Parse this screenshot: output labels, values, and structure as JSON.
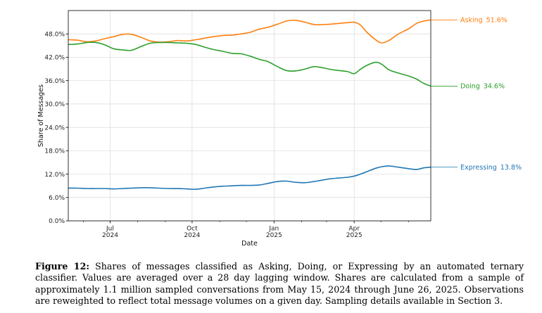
{
  "chart_data": {
    "type": "line",
    "xlabel": "Date",
    "ylabel": "Share of Messages",
    "ylim": [
      0,
      54
    ],
    "yticks": [
      0,
      6,
      12,
      18,
      24,
      30,
      36,
      42,
      48
    ],
    "ytick_labels": [
      "0.0%",
      "6.0%",
      "12.0%",
      "18.0%",
      "24.0%",
      "30.0%",
      "36.0%",
      "42.0%",
      "48.0%"
    ],
    "xlim": [
      "2024-05-15",
      "2025-06-26"
    ],
    "xticks": [
      {
        "date": "2024-07-01",
        "month": "Jul",
        "year": "2024"
      },
      {
        "date": "2024-10-01",
        "month": "Oct",
        "year": "2024"
      },
      {
        "date": "2025-01-01",
        "month": "Jan",
        "year": "2025"
      },
      {
        "date": "2025-04-01",
        "month": "Apr",
        "year": "2025"
      }
    ],
    "grid": true,
    "series": [
      {
        "name": "Asking",
        "end_label": "Asking",
        "end_value": "51.6%",
        "color": "#ff7f0e",
        "points": [
          [
            "2024-05-15",
            46.5
          ],
          [
            "2024-05-25",
            46.4
          ],
          [
            "2024-06-05",
            46.0
          ],
          [
            "2024-06-15",
            46.2
          ],
          [
            "2024-06-25",
            46.8
          ],
          [
            "2024-07-05",
            47.3
          ],
          [
            "2024-07-15",
            47.9
          ],
          [
            "2024-07-25",
            47.9
          ],
          [
            "2024-08-05",
            47.1
          ],
          [
            "2024-08-15",
            46.2
          ],
          [
            "2024-08-25",
            45.9
          ],
          [
            "2024-09-05",
            46.0
          ],
          [
            "2024-09-15",
            46.3
          ],
          [
            "2024-09-25",
            46.2
          ],
          [
            "2024-10-05",
            46.5
          ],
          [
            "2024-10-15",
            46.9
          ],
          [
            "2024-10-25",
            47.3
          ],
          [
            "2024-11-05",
            47.6
          ],
          [
            "2024-11-15",
            47.7
          ],
          [
            "2024-11-25",
            48.0
          ],
          [
            "2024-12-05",
            48.4
          ],
          [
            "2024-12-15",
            49.2
          ],
          [
            "2024-12-25",
            49.7
          ],
          [
            "2025-01-05",
            50.5
          ],
          [
            "2025-01-15",
            51.3
          ],
          [
            "2025-01-25",
            51.5
          ],
          [
            "2025-02-05",
            51.0
          ],
          [
            "2025-02-15",
            50.4
          ],
          [
            "2025-02-25",
            50.4
          ],
          [
            "2025-03-05",
            50.5
          ],
          [
            "2025-03-15",
            50.7
          ],
          [
            "2025-03-25",
            50.9
          ],
          [
            "2025-04-01",
            51.0
          ],
          [
            "2025-04-08",
            50.3
          ],
          [
            "2025-04-15",
            48.5
          ],
          [
            "2025-04-25",
            46.5
          ],
          [
            "2025-05-02",
            45.7
          ],
          [
            "2025-05-10",
            46.3
          ],
          [
            "2025-05-20",
            47.9
          ],
          [
            "2025-06-01",
            49.3
          ],
          [
            "2025-06-10",
            50.7
          ],
          [
            "2025-06-18",
            51.3
          ],
          [
            "2025-06-26",
            51.6
          ]
        ]
      },
      {
        "name": "Doing",
        "end_label": "Doing",
        "end_value": "34.6%",
        "color": "#2ca02c",
        "points": [
          [
            "2024-05-15",
            45.3
          ],
          [
            "2024-05-25",
            45.4
          ],
          [
            "2024-06-05",
            45.8
          ],
          [
            "2024-06-15",
            45.8
          ],
          [
            "2024-06-25",
            45.2
          ],
          [
            "2024-07-05",
            44.2
          ],
          [
            "2024-07-15",
            43.9
          ],
          [
            "2024-07-25",
            43.8
          ],
          [
            "2024-08-05",
            44.8
          ],
          [
            "2024-08-15",
            45.6
          ],
          [
            "2024-08-25",
            45.8
          ],
          [
            "2024-09-05",
            45.8
          ],
          [
            "2024-09-15",
            45.7
          ],
          [
            "2024-09-25",
            45.6
          ],
          [
            "2024-10-05",
            45.3
          ],
          [
            "2024-10-15",
            44.6
          ],
          [
            "2024-10-25",
            44.0
          ],
          [
            "2024-11-05",
            43.5
          ],
          [
            "2024-11-15",
            43.0
          ],
          [
            "2024-11-25",
            42.9
          ],
          [
            "2024-12-05",
            42.3
          ],
          [
            "2024-12-15",
            41.5
          ],
          [
            "2024-12-25",
            40.9
          ],
          [
            "2025-01-05",
            39.6
          ],
          [
            "2025-01-15",
            38.6
          ],
          [
            "2025-01-25",
            38.5
          ],
          [
            "2025-02-05",
            39.0
          ],
          [
            "2025-02-15",
            39.6
          ],
          [
            "2025-02-25",
            39.3
          ],
          [
            "2025-03-05",
            38.9
          ],
          [
            "2025-03-15",
            38.6
          ],
          [
            "2025-03-25",
            38.3
          ],
          [
            "2025-04-01",
            37.8
          ],
          [
            "2025-04-08",
            38.9
          ],
          [
            "2025-04-15",
            39.9
          ],
          [
            "2025-04-25",
            40.7
          ],
          [
            "2025-05-02",
            40.2
          ],
          [
            "2025-05-10",
            38.8
          ],
          [
            "2025-05-20",
            38.0
          ],
          [
            "2025-06-01",
            37.2
          ],
          [
            "2025-06-10",
            36.4
          ],
          [
            "2025-06-18",
            35.3
          ],
          [
            "2025-06-26",
            34.6
          ]
        ]
      },
      {
        "name": "Expressing",
        "end_label": "Expressing",
        "end_value": "13.8%",
        "color": "#1f77b4",
        "points": [
          [
            "2024-05-15",
            8.4
          ],
          [
            "2024-05-25",
            8.4
          ],
          [
            "2024-06-05",
            8.3
          ],
          [
            "2024-06-15",
            8.3
          ],
          [
            "2024-06-25",
            8.3
          ],
          [
            "2024-07-05",
            8.2
          ],
          [
            "2024-07-15",
            8.3
          ],
          [
            "2024-07-25",
            8.4
          ],
          [
            "2024-08-05",
            8.5
          ],
          [
            "2024-08-15",
            8.5
          ],
          [
            "2024-08-25",
            8.4
          ],
          [
            "2024-09-05",
            8.3
          ],
          [
            "2024-09-15",
            8.3
          ],
          [
            "2024-09-25",
            8.2
          ],
          [
            "2024-10-05",
            8.1
          ],
          [
            "2024-10-15",
            8.4
          ],
          [
            "2024-10-25",
            8.7
          ],
          [
            "2024-11-05",
            8.9
          ],
          [
            "2024-11-15",
            9.0
          ],
          [
            "2024-11-25",
            9.1
          ],
          [
            "2024-12-05",
            9.1
          ],
          [
            "2024-12-15",
            9.2
          ],
          [
            "2024-12-25",
            9.6
          ],
          [
            "2025-01-05",
            10.1
          ],
          [
            "2025-01-15",
            10.2
          ],
          [
            "2025-01-25",
            9.9
          ],
          [
            "2025-02-05",
            9.8
          ],
          [
            "2025-02-15",
            10.1
          ],
          [
            "2025-02-25",
            10.5
          ],
          [
            "2025-03-05",
            10.8
          ],
          [
            "2025-03-15",
            11.0
          ],
          [
            "2025-03-25",
            11.2
          ],
          [
            "2025-04-01",
            11.5
          ],
          [
            "2025-04-08",
            12.0
          ],
          [
            "2025-04-15",
            12.6
          ],
          [
            "2025-04-25",
            13.5
          ],
          [
            "2025-05-02",
            13.9
          ],
          [
            "2025-05-10",
            14.1
          ],
          [
            "2025-05-20",
            13.8
          ],
          [
            "2025-06-01",
            13.4
          ],
          [
            "2025-06-10",
            13.2
          ],
          [
            "2025-06-18",
            13.6
          ],
          [
            "2025-06-26",
            13.8
          ]
        ]
      }
    ]
  },
  "caption": {
    "label": "Figure 12:",
    "text": "Shares of messages classified as Asking, Doing, or Expressing by an automated ternary classifier. Values are averaged over a 28 day lagging window. Shares are calculated from a sample of approximately 1.1 million sampled conversations from May 15, 2024 through June 26, 2025. Observations are reweighted to reflect total message volumes on a given day. Sampling details available in Section 3."
  }
}
